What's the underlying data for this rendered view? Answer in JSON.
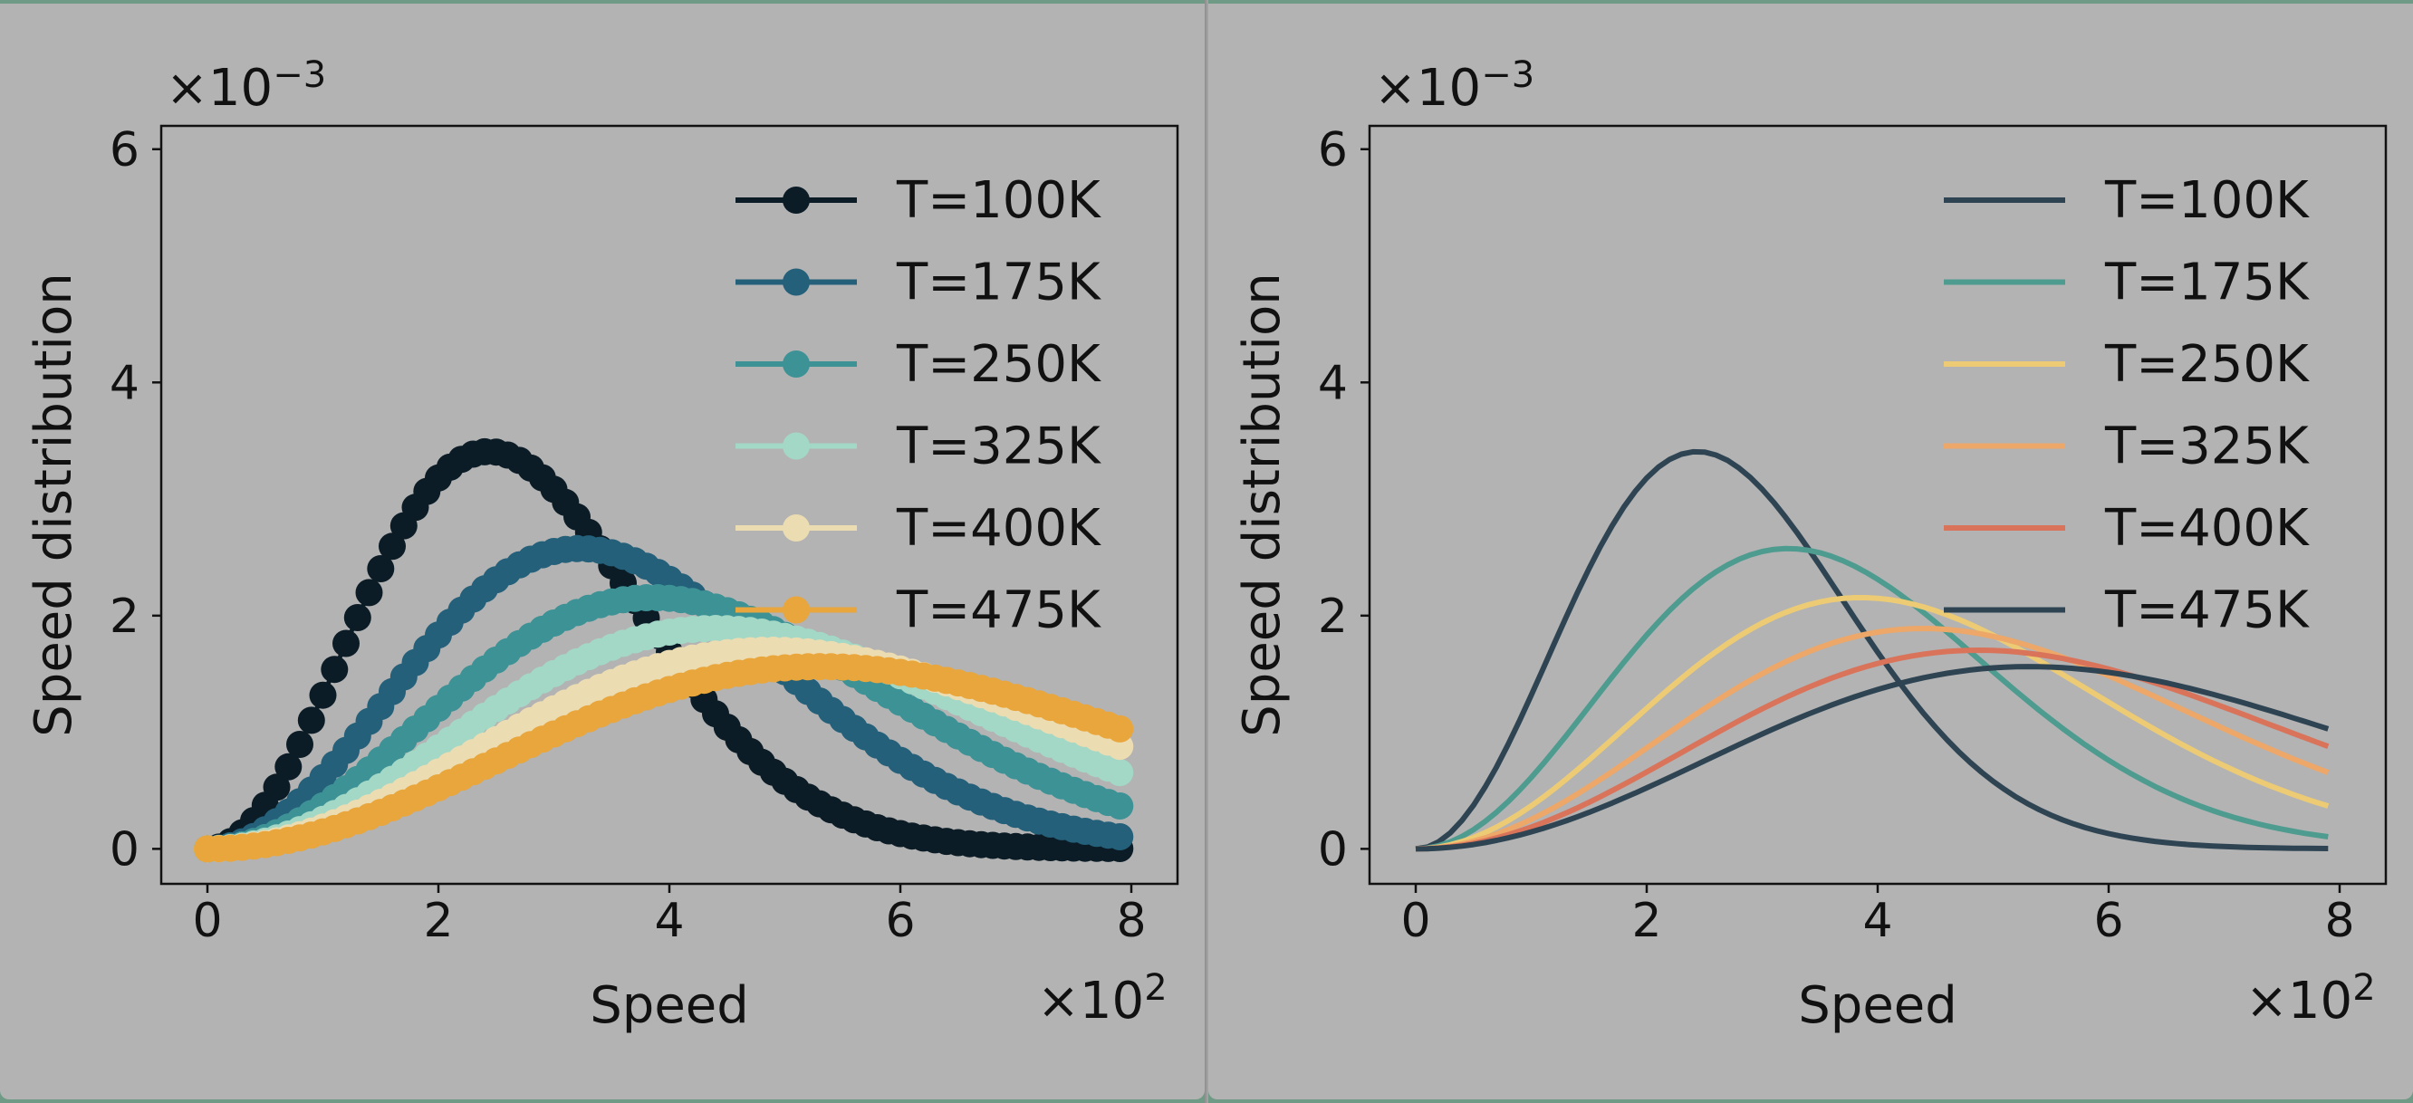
{
  "chart_data": [
    {
      "type": "scatter",
      "style": "line-with-markers",
      "title": "",
      "xlabel": "Speed",
      "ylabel": "Speed distribution",
      "x_multiplier": "×10",
      "x_exponent": "2",
      "y_multiplier": "×10",
      "y_exponent": "−3",
      "xlim": [
        -40,
        840
      ],
      "ylim": [
        -0.0003,
        0.0062
      ],
      "xticks": [
        0,
        200,
        400,
        600,
        800
      ],
      "xtick_labels": [
        "0",
        "2",
        "4",
        "6",
        "8"
      ],
      "yticks": [
        0,
        0.002,
        0.004,
        0.006
      ],
      "ytick_labels": [
        "0",
        "2",
        "4",
        "6"
      ],
      "x_start": 0,
      "x_step": 10,
      "x_end": 790,
      "grid": false,
      "legend_position": "top-right",
      "series": [
        {
          "name": "T=100K",
          "temperature": 100,
          "color": "#0b1c26"
        },
        {
          "name": "T=175K",
          "temperature": 175,
          "color": "#24607a"
        },
        {
          "name": "T=250K",
          "temperature": 250,
          "color": "#3d9296"
        },
        {
          "name": "T=325K",
          "temperature": 325,
          "color": "#a3d7c6"
        },
        {
          "name": "T=400K",
          "temperature": 400,
          "color": "#ecdcb2"
        },
        {
          "name": "T=475K",
          "temperature": 475,
          "color": "#e9a63c"
        }
      ]
    },
    {
      "type": "line",
      "title": "",
      "xlabel": "Speed",
      "ylabel": "Speed distribution",
      "x_multiplier": "×10",
      "x_exponent": "2",
      "y_multiplier": "×10",
      "y_exponent": "−3",
      "xlim": [
        -40,
        840
      ],
      "ylim": [
        -0.0003,
        0.0062
      ],
      "xticks": [
        0,
        200,
        400,
        600,
        800
      ],
      "xtick_labels": [
        "0",
        "2",
        "4",
        "6",
        "8"
      ],
      "yticks": [
        0,
        0.002,
        0.004,
        0.006
      ],
      "ytick_labels": [
        "0",
        "2",
        "4",
        "6"
      ],
      "x_start": 0,
      "x_step": 10,
      "x_end": 790,
      "grid": false,
      "legend_position": "top-right",
      "series": [
        {
          "name": "T=100K",
          "temperature": 100,
          "color": "#2e4453"
        },
        {
          "name": "T=175K",
          "temperature": 175,
          "color": "#4e9b8f"
        },
        {
          "name": "T=250K",
          "temperature": 250,
          "color": "#eccb74"
        },
        {
          "name": "T=325K",
          "temperature": 325,
          "color": "#eda768"
        },
        {
          "name": "T=400K",
          "temperature": 400,
          "color": "#d9735a"
        },
        {
          "name": "T=475K",
          "temperature": 475,
          "color": "#2e4453"
        }
      ]
    }
  ]
}
